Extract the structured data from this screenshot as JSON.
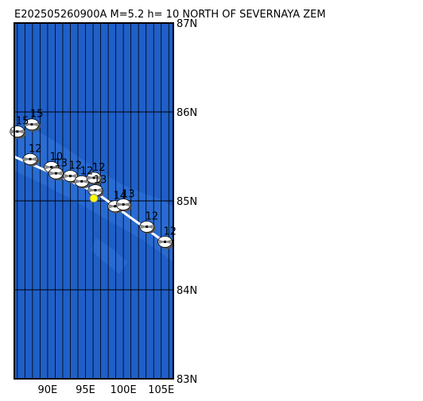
{
  "map": {
    "title": "E202505260900A M=5.2 h= 10 NORTH OF SEVERNAYA ZEM",
    "lonlim": [
      85.6,
      106.6
    ],
    "latlim": [
      83,
      87
    ],
    "lonticks": [
      {
        "value": 90,
        "label": "90E"
      },
      {
        "value": 95,
        "label": "95E"
      },
      {
        "value": 100,
        "label": "100E"
      },
      {
        "value": 105,
        "label": "105E"
      }
    ],
    "latticks": [
      {
        "value": 83,
        "label": "83N"
      },
      {
        "value": 84,
        "label": "84N"
      },
      {
        "value": 85,
        "label": "85N"
      },
      {
        "value": 86,
        "label": "86N"
      },
      {
        "value": 87,
        "label": "87N"
      }
    ],
    "epicenter": {
      "lon": 96.1,
      "lat": 85.03
    },
    "events": [
      {
        "label": "15",
        "lon": 87.9,
        "lat": 85.86
      },
      {
        "label": "15",
        "lon": 86.0,
        "lat": 85.78
      },
      {
        "label": "12",
        "lon": 87.7,
        "lat": 85.47
      },
      {
        "label": "10",
        "lon": 90.5,
        "lat": 85.38
      },
      {
        "label": "13",
        "lon": 91.1,
        "lat": 85.31
      },
      {
        "label": "12",
        "lon": 93.0,
        "lat": 85.28
      },
      {
        "label": "12",
        "lon": 94.5,
        "lat": 85.22
      },
      {
        "label": "12",
        "lon": 96.1,
        "lat": 85.26
      },
      {
        "label": "13",
        "lon": 96.3,
        "lat": 85.12
      },
      {
        "label": "14",
        "lon": 98.9,
        "lat": 84.94
      },
      {
        "label": "13",
        "lon": 100.0,
        "lat": 84.96
      },
      {
        "label": "12",
        "lon": 103.1,
        "lat": 84.71
      },
      {
        "label": "12",
        "lon": 105.5,
        "lat": 84.54
      }
    ]
  }
}
